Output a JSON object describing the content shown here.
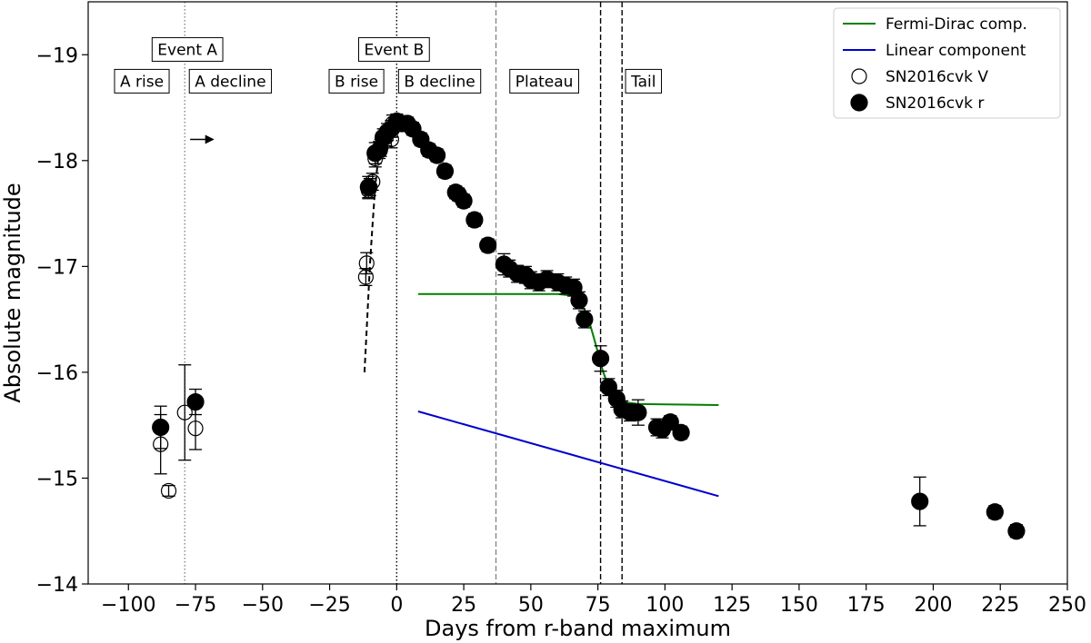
{
  "chart_data": {
    "type": "scatter",
    "title": "",
    "xlabel": "Days from r-band maximum",
    "ylabel": "Absolute magnitude",
    "xlim": [
      -115,
      250
    ],
    "ylim": [
      -14,
      -19.5
    ],
    "y_inverted": true,
    "x_ticks": [
      -100,
      -75,
      -50,
      -25,
      0,
      25,
      50,
      75,
      100,
      125,
      150,
      175,
      200,
      225,
      250
    ],
    "y_ticks": [
      -14,
      -15,
      -16,
      -17,
      -18,
      -19
    ],
    "x_tick_labels": [
      "−100",
      "−75",
      "−50",
      "−25",
      "0",
      "25",
      "50",
      "75",
      "100",
      "125",
      "150",
      "175",
      "200",
      "225",
      "250"
    ],
    "y_tick_labels": [
      "−14",
      "−15",
      "−16",
      "−17",
      "−18",
      "−19"
    ],
    "grid": false,
    "legend_position": "top-right",
    "legend": [
      {
        "label": "Fermi-Dirac comp.",
        "kind": "line",
        "color": "#008000"
      },
      {
        "label": "Linear component",
        "kind": "line",
        "color": "#0000cc"
      },
      {
        "label": "SN2016cvk V",
        "kind": "open-marker",
        "color": "#000000"
      },
      {
        "label": "SN2016cvk r",
        "kind": "filled-marker",
        "color": "#000000"
      }
    ],
    "vertical_lines": [
      {
        "x": -79,
        "style": "dotted",
        "color": "#888888"
      },
      {
        "x": 0,
        "style": "dotted",
        "color": "#000000"
      },
      {
        "x": 37,
        "style": "dashed",
        "color": "#888888"
      },
      {
        "x": 76,
        "style": "dashed",
        "color": "#000000"
      },
      {
        "x": 84,
        "style": "dashed",
        "color": "#000000"
      }
    ],
    "phase_labels": [
      {
        "text": "Event A",
        "x": -78,
        "y": -19.05
      },
      {
        "text": "Event B",
        "x": -1,
        "y": -19.05
      },
      {
        "text": "A rise",
        "x": -95,
        "y": -18.75
      },
      {
        "text": "A decline",
        "x": -62,
        "y": -18.75
      },
      {
        "text": "B rise",
        "x": -15,
        "y": -18.75
      },
      {
        "text": "B decline",
        "x": 16,
        "y": -18.75
      },
      {
        "text": "Plateau",
        "x": 55,
        "y": -18.75
      },
      {
        "text": "Tail",
        "x": 92,
        "y": -18.75
      }
    ],
    "arrow": {
      "x_start": -77,
      "x_end": -68,
      "y": -18.2
    },
    "series": [
      {
        "name": "SN2016cvk V",
        "marker": "open",
        "points": [
          {
            "x": -88,
            "y": -15.32,
            "err": 0.28
          },
          {
            "x": -85,
            "y": -14.88,
            "err": 0.05
          },
          {
            "x": -79,
            "y": -15.62,
            "err": 0.45
          },
          {
            "x": -75,
            "y": -15.47,
            "err": 0.2
          },
          {
            "x": -11.5,
            "y": -16.9,
            "err": 0.08
          },
          {
            "x": -11.2,
            "y": -17.03,
            "err": 0.1
          },
          {
            "x": -10.5,
            "y": -17.72,
            "err": 0.08
          },
          {
            "x": -10,
            "y": -17.75,
            "err": 0.08
          },
          {
            "x": -9,
            "y": -17.8,
            "err": 0.08
          },
          {
            "x": -8,
            "y": -18.02,
            "err": 0.08
          },
          {
            "x": -6,
            "y": -18.12,
            "err": 0.08
          },
          {
            "x": -4,
            "y": -18.22,
            "err": 0.08
          },
          {
            "x": -2,
            "y": -18.2,
            "err": 0.08
          },
          {
            "x": -1.5,
            "y": -18.35,
            "err": 0.08
          },
          {
            "x": 0,
            "y": -18.38,
            "err": 0.06
          }
        ]
      },
      {
        "name": "SN2016cvk r",
        "marker": "filled",
        "points": [
          {
            "x": -88,
            "y": -15.48,
            "err": 0.2
          },
          {
            "x": -75,
            "y": -15.72,
            "err": 0.12
          },
          {
            "x": -10.5,
            "y": -17.75,
            "err": 0.1
          },
          {
            "x": -8,
            "y": -18.07,
            "err": 0.1
          },
          {
            "x": -6.5,
            "y": -18.1,
            "err": 0.08
          },
          {
            "x": -5,
            "y": -18.22,
            "err": 0.08
          },
          {
            "x": -3.5,
            "y": -18.27,
            "err": 0.08
          },
          {
            "x": -2,
            "y": -18.3,
            "err": 0.08
          },
          {
            "x": 0,
            "y": -18.37,
            "err": 0.06
          },
          {
            "x": 2,
            "y": -18.35,
            "err": 0.06
          },
          {
            "x": 4,
            "y": -18.35,
            "err": 0.06
          },
          {
            "x": 6,
            "y": -18.3,
            "err": 0.06
          },
          {
            "x": 9,
            "y": -18.2,
            "err": 0.06
          },
          {
            "x": 12,
            "y": -18.1,
            "err": 0.06
          },
          {
            "x": 15,
            "y": -18.05,
            "err": 0.06
          },
          {
            "x": 18,
            "y": -17.9,
            "err": 0.06
          },
          {
            "x": 22,
            "y": -17.7,
            "err": 0.06
          },
          {
            "x": 23,
            "y": -17.68,
            "err": 0.06
          },
          {
            "x": 25,
            "y": -17.62,
            "err": 0.06
          },
          {
            "x": 29,
            "y": -17.44,
            "err": 0.06
          },
          {
            "x": 34,
            "y": -17.2,
            "err": 0.06
          },
          {
            "x": 40,
            "y": -17.02,
            "err": 0.1
          },
          {
            "x": 42,
            "y": -16.98,
            "err": 0.08
          },
          {
            "x": 45,
            "y": -16.93,
            "err": 0.08
          },
          {
            "x": 48,
            "y": -16.92,
            "err": 0.08
          },
          {
            "x": 50,
            "y": -16.87,
            "err": 0.08
          },
          {
            "x": 53,
            "y": -16.85,
            "err": 0.08
          },
          {
            "x": 56,
            "y": -16.88,
            "err": 0.08
          },
          {
            "x": 60,
            "y": -16.85,
            "err": 0.08
          },
          {
            "x": 63,
            "y": -16.82,
            "err": 0.08
          },
          {
            "x": 66,
            "y": -16.8,
            "err": 0.08
          },
          {
            "x": 68,
            "y": -16.68,
            "err": 0.08
          },
          {
            "x": 70,
            "y": -16.5,
            "err": 0.08
          },
          {
            "x": 76,
            "y": -16.13,
            "err": 0.12
          },
          {
            "x": 79,
            "y": -15.86,
            "err": 0.08
          },
          {
            "x": 82,
            "y": -15.75,
            "err": 0.08
          },
          {
            "x": 84,
            "y": -15.65,
            "err": 0.08
          },
          {
            "x": 87,
            "y": -15.62,
            "err": 0.08
          },
          {
            "x": 90,
            "y": -15.62,
            "err": 0.12
          },
          {
            "x": 97,
            "y": -15.48,
            "err": 0.08
          },
          {
            "x": 99,
            "y": -15.46,
            "err": 0.08
          },
          {
            "x": 102,
            "y": -15.53,
            "err": 0.06
          },
          {
            "x": 106,
            "y": -15.43,
            "err": 0.06
          },
          {
            "x": 195,
            "y": -14.78,
            "err": 0.23
          },
          {
            "x": 223,
            "y": -14.68,
            "err": 0.06
          },
          {
            "x": 231,
            "y": -14.5,
            "err": 0.06
          }
        ]
      }
    ],
    "lines": [
      {
        "name": "Fermi-Dirac comp.",
        "color": "#008000",
        "style": "solid",
        "points": [
          [
            8,
            -16.74
          ],
          [
            60,
            -16.74
          ],
          [
            67,
            -16.72
          ],
          [
            71,
            -16.55
          ],
          [
            74,
            -16.28
          ],
          [
            77,
            -16.0
          ],
          [
            80,
            -15.8
          ],
          [
            84,
            -15.72
          ],
          [
            90,
            -15.7
          ],
          [
            120,
            -15.69
          ]
        ]
      },
      {
        "name": "Linear component",
        "color": "#0000cc",
        "style": "solid",
        "points": [
          [
            8,
            -15.63
          ],
          [
            120,
            -14.83
          ]
        ]
      },
      {
        "name": "",
        "color": "#000000",
        "style": "dashed",
        "points": [
          [
            -12,
            -16.0
          ],
          [
            -11,
            -16.5
          ],
          [
            -10,
            -17.0
          ],
          [
            -9,
            -17.4
          ],
          [
            -8,
            -17.75
          ],
          [
            -7,
            -18.0
          ],
          [
            -6,
            -18.15
          ],
          [
            -4,
            -18.27
          ],
          [
            -2,
            -18.33
          ],
          [
            0,
            -18.38
          ]
        ]
      }
    ]
  }
}
